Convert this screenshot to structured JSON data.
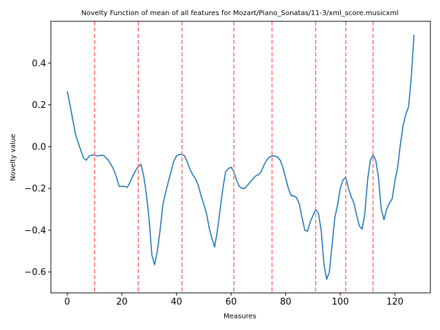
{
  "chart_data": {
    "type": "line",
    "title": "Novelty Function of mean of all features for Mozart/Piano_Sonatas/11-3/xml_score.musicxml",
    "xlabel": "Measures",
    "ylabel": "Novelty value",
    "xlim": [
      -6,
      133
    ],
    "ylim": [
      -0.7,
      0.6
    ],
    "xticks": [
      0,
      20,
      40,
      60,
      80,
      100,
      120
    ],
    "xtick_labels": [
      "0",
      "20",
      "40",
      "60",
      "80",
      "100",
      "120"
    ],
    "yticks": [
      -0.6,
      -0.4,
      -0.2,
      0.0,
      0.2,
      0.4
    ],
    "ytick_labels": [
      "−0.6",
      "−0.4",
      "−0.2",
      "0.0",
      "0.2",
      "0.4"
    ],
    "grid": false,
    "series": [
      {
        "color": "#1f77b4",
        "x": [
          0,
          1,
          2,
          3,
          4,
          5,
          6,
          7,
          8,
          9,
          10,
          11,
          12,
          13,
          14,
          15,
          16,
          17,
          18,
          19,
          20,
          21,
          22,
          23,
          24,
          25,
          26,
          27,
          28,
          29,
          30,
          31,
          32,
          33,
          34,
          35,
          36,
          37,
          38,
          39,
          40,
          41,
          42,
          43,
          44,
          45,
          46,
          47,
          48,
          49,
          50,
          51,
          52,
          53,
          54,
          55,
          56,
          57,
          58,
          59,
          60,
          61,
          62,
          63,
          64,
          65,
          66,
          67,
          68,
          69,
          70,
          71,
          72,
          73,
          74,
          75,
          76,
          77,
          78,
          79,
          80,
          81,
          82,
          83,
          84,
          85,
          86,
          87,
          88,
          89,
          90,
          91,
          92,
          93,
          94,
          95,
          96,
          97,
          98,
          99,
          100,
          101,
          102,
          103,
          104,
          105,
          106,
          107,
          108,
          109,
          110,
          111,
          112,
          113,
          114,
          115,
          116,
          117,
          118,
          119,
          120,
          121,
          122,
          123,
          124,
          125,
          126,
          127
        ],
        "y": [
          0.265,
          0.2,
          0.13,
          0.06,
          0.02,
          -0.02,
          -0.055,
          -0.065,
          -0.045,
          -0.04,
          -0.04,
          -0.045,
          -0.042,
          -0.04,
          -0.05,
          -0.065,
          -0.085,
          -0.11,
          -0.145,
          -0.19,
          -0.19,
          -0.19,
          -0.195,
          -0.17,
          -0.14,
          -0.115,
          -0.095,
          -0.085,
          -0.14,
          -0.23,
          -0.35,
          -0.52,
          -0.565,
          -0.5,
          -0.4,
          -0.28,
          -0.22,
          -0.17,
          -0.12,
          -0.07,
          -0.045,
          -0.037,
          -0.037,
          -0.045,
          -0.075,
          -0.11,
          -0.135,
          -0.155,
          -0.185,
          -0.235,
          -0.275,
          -0.32,
          -0.39,
          -0.44,
          -0.48,
          -0.4,
          -0.3,
          -0.2,
          -0.12,
          -0.105,
          -0.098,
          -0.12,
          -0.16,
          -0.19,
          -0.2,
          -0.2,
          -0.185,
          -0.17,
          -0.155,
          -0.14,
          -0.135,
          -0.12,
          -0.09,
          -0.065,
          -0.05,
          -0.045,
          -0.045,
          -0.05,
          -0.065,
          -0.1,
          -0.15,
          -0.2,
          -0.235,
          -0.235,
          -0.245,
          -0.275,
          -0.34,
          -0.4,
          -0.405,
          -0.36,
          -0.33,
          -0.3,
          -0.32,
          -0.4,
          -0.56,
          -0.635,
          -0.6,
          -0.47,
          -0.34,
          -0.28,
          -0.2,
          -0.16,
          -0.145,
          -0.2,
          -0.24,
          -0.27,
          -0.33,
          -0.38,
          -0.395,
          -0.32,
          -0.16,
          -0.065,
          -0.04,
          -0.065,
          -0.15,
          -0.3,
          -0.35,
          -0.3,
          -0.27,
          -0.25,
          -0.165,
          -0.1,
          0.01,
          0.1,
          0.155,
          0.19,
          0.33,
          0.535
        ]
      }
    ],
    "vlines": {
      "color": "#ff6a6a",
      "style": "dashed",
      "x": [
        10,
        26,
        42,
        61,
        75,
        91,
        102,
        112
      ]
    }
  }
}
